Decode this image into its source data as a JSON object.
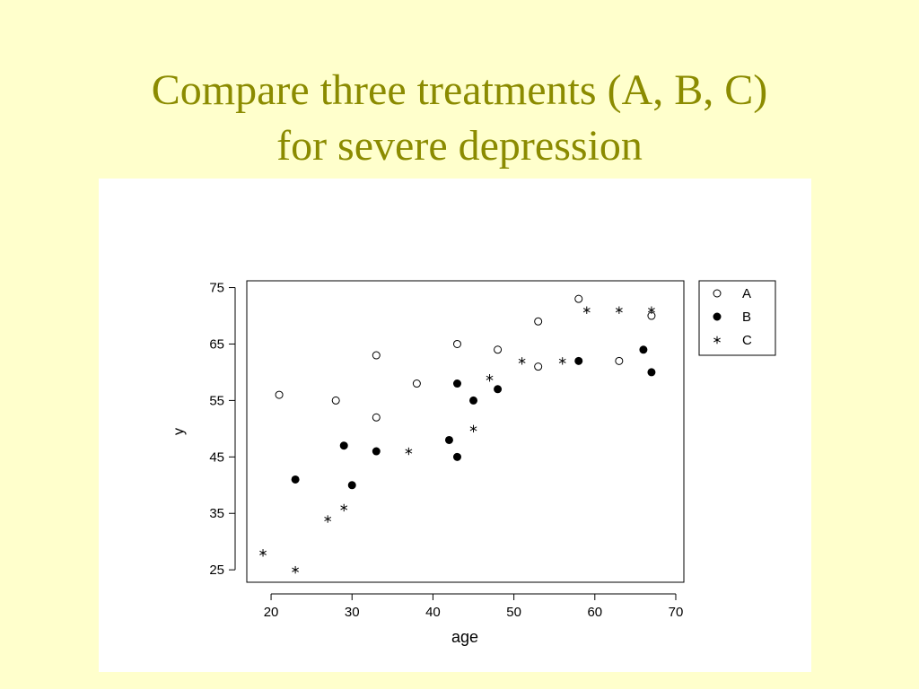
{
  "slide": {
    "title_line1": "Compare three treatments (A, B, C)",
    "title_line2": "for severe depression",
    "title_color": "#8B8B00",
    "background_color": "#FFFFCC"
  },
  "chart_data": {
    "type": "scatter",
    "xlabel": "age",
    "ylabel": "y",
    "xlim": [
      17,
      71
    ],
    "ylim": [
      22.8,
      76.2
    ],
    "xticks": [
      20,
      30,
      40,
      50,
      60,
      70
    ],
    "yticks": [
      25,
      35,
      45,
      55,
      65,
      75
    ],
    "grid": false,
    "legend": {
      "placement": "top-right outside plot"
    },
    "series": [
      {
        "name": "A",
        "marker": "open-circle",
        "points": [
          [
            21,
            56
          ],
          [
            28,
            55
          ],
          [
            33,
            63
          ],
          [
            33,
            52
          ],
          [
            38,
            58
          ],
          [
            43,
            65
          ],
          [
            48,
            64
          ],
          [
            53,
            69
          ],
          [
            53,
            61
          ],
          [
            58,
            73
          ],
          [
            63,
            62
          ],
          [
            67,
            70
          ]
        ]
      },
      {
        "name": "B",
        "marker": "filled-circle",
        "points": [
          [
            23,
            41
          ],
          [
            29,
            47
          ],
          [
            30,
            40
          ],
          [
            33,
            46
          ],
          [
            42,
            48
          ],
          [
            43,
            58
          ],
          [
            43,
            45
          ],
          [
            45,
            55
          ],
          [
            48,
            57
          ],
          [
            58,
            62
          ],
          [
            66,
            64
          ],
          [
            67,
            60
          ]
        ]
      },
      {
        "name": "C",
        "marker": "asterisk",
        "points": [
          [
            19,
            28
          ],
          [
            23,
            25
          ],
          [
            27,
            34
          ],
          [
            29,
            36
          ],
          [
            37,
            46
          ],
          [
            45,
            50
          ],
          [
            47,
            59
          ],
          [
            51,
            62
          ],
          [
            56,
            62
          ],
          [
            59,
            71
          ],
          [
            63,
            71
          ],
          [
            67,
            71
          ]
        ]
      }
    ]
  }
}
